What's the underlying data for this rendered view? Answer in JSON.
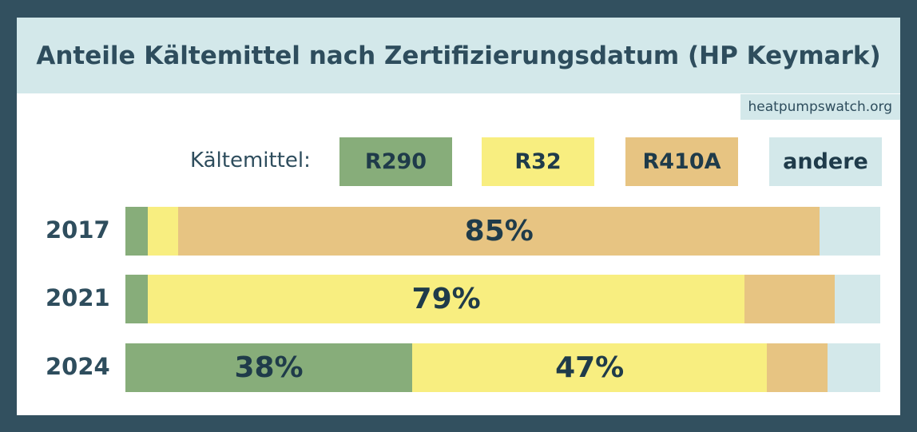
{
  "title": "Anteile Kältemittel nach Zertifizierungsdatum (HP Keymark)",
  "source": "heatpumpswatch.org",
  "chart_data": {
    "type": "bar",
    "orientation": "horizontal-stacked-100",
    "title": "Anteile Kältemittel nach Zertifizierungsdatum (HP Keymark)",
    "legend_title": "Kältemittel:",
    "legend_placement": "top",
    "categories": [
      "2017",
      "2021",
      "2024"
    ],
    "series": [
      {
        "name": "R290",
        "color": "#87ad7a",
        "values": [
          3,
          3,
          38
        ],
        "labels": [
          "",
          "",
          "38%"
        ]
      },
      {
        "name": "R32",
        "color": "#f8ee80",
        "values": [
          4,
          79,
          47
        ],
        "labels": [
          "",
          "79%",
          "47%"
        ]
      },
      {
        "name": "R410A",
        "color": "#e7c482",
        "values": [
          85,
          12,
          8
        ],
        "labels": [
          "85%",
          "",
          ""
        ]
      },
      {
        "name": "andere",
        "color": "#d3e8ea",
        "values": [
          8,
          6,
          7
        ],
        "labels": [
          "",
          "",
          ""
        ]
      }
    ],
    "xlim": [
      0,
      100
    ]
  }
}
